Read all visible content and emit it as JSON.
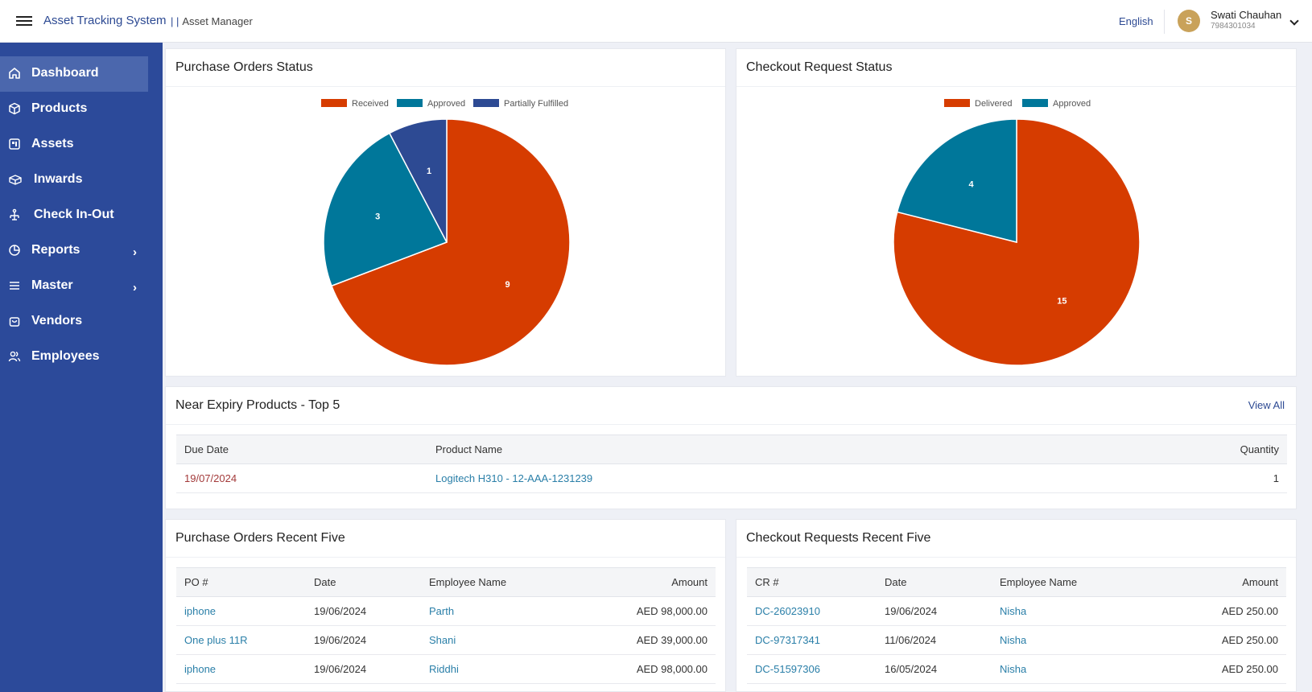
{
  "header": {
    "app_title": "Asset Tracking System",
    "separator": "| |",
    "subtitle": "Asset Manager",
    "language": "English",
    "user": {
      "initial": "S",
      "name": "Swati Chauhan",
      "phone": "7984301034"
    }
  },
  "sidebar": {
    "items": [
      {
        "label": "Dashboard",
        "icon": "home-icon"
      },
      {
        "label": "Products",
        "icon": "cube-icon"
      },
      {
        "label": "Assets",
        "icon": "asset-icon"
      },
      {
        "label": "Inwards",
        "icon": "box-icon"
      },
      {
        "label": "Check In-Out",
        "icon": "checkin-icon"
      },
      {
        "label": "Reports",
        "icon": "pie-chart-icon"
      },
      {
        "label": "Master",
        "icon": "menu-icon"
      },
      {
        "label": "Vendors",
        "icon": "bag-icon"
      },
      {
        "label": "Employees",
        "icon": "users-icon"
      }
    ]
  },
  "po_status": {
    "title": "Purchase Orders Status"
  },
  "checkout_status": {
    "title": "Checkout Request Status"
  },
  "chart_data": [
    {
      "type": "pie",
      "title": "Purchase Orders Status",
      "categories": [
        "Received",
        "Approved",
        "Partially Fulfilled"
      ],
      "values": [
        9,
        3,
        1
      ],
      "colors": [
        "#d63c00",
        "#00779a",
        "#2d4a93"
      ],
      "legend": "top"
    },
    {
      "type": "pie",
      "title": "Checkout Request Status",
      "categories": [
        "Delivered",
        "Approved"
      ],
      "values": [
        15,
        4
      ],
      "colors": [
        "#d63c00",
        "#00779a"
      ],
      "legend": "top"
    }
  ],
  "near_expiry": {
    "title": "Near Expiry Products - Top 5",
    "view_all": "View All",
    "columns": [
      "Due Date",
      "Product Name",
      "Quantity"
    ],
    "rows": [
      {
        "due_date": "19/07/2024",
        "product": "Logitech H310 - 12-AAA-1231239",
        "quantity": "1"
      }
    ]
  },
  "po_recent": {
    "title": "Purchase Orders Recent Five",
    "columns": [
      "PO #",
      "Date",
      "Employee Name",
      "Amount"
    ],
    "rows": [
      {
        "id": "iphone",
        "date": "19/06/2024",
        "employee": "Parth",
        "amount": "AED 98,000.00"
      },
      {
        "id": "One plus 11R",
        "date": "19/06/2024",
        "employee": "Shani",
        "amount": "AED 39,000.00"
      },
      {
        "id": "iphone",
        "date": "19/06/2024",
        "employee": "Riddhi",
        "amount": "AED 98,000.00"
      }
    ]
  },
  "cr_recent": {
    "title": "Checkout Requests Recent Five",
    "columns": [
      "CR #",
      "Date",
      "Employee Name",
      "Amount"
    ],
    "rows": [
      {
        "id": "DC-26023910",
        "date": "19/06/2024",
        "employee": "Nisha",
        "amount": "AED 250.00"
      },
      {
        "id": "DC-97317341",
        "date": "11/06/2024",
        "employee": "Nisha",
        "amount": "AED 250.00"
      },
      {
        "id": "DC-51597306",
        "date": "16/05/2024",
        "employee": "Nisha",
        "amount": "AED 250.00"
      }
    ]
  }
}
